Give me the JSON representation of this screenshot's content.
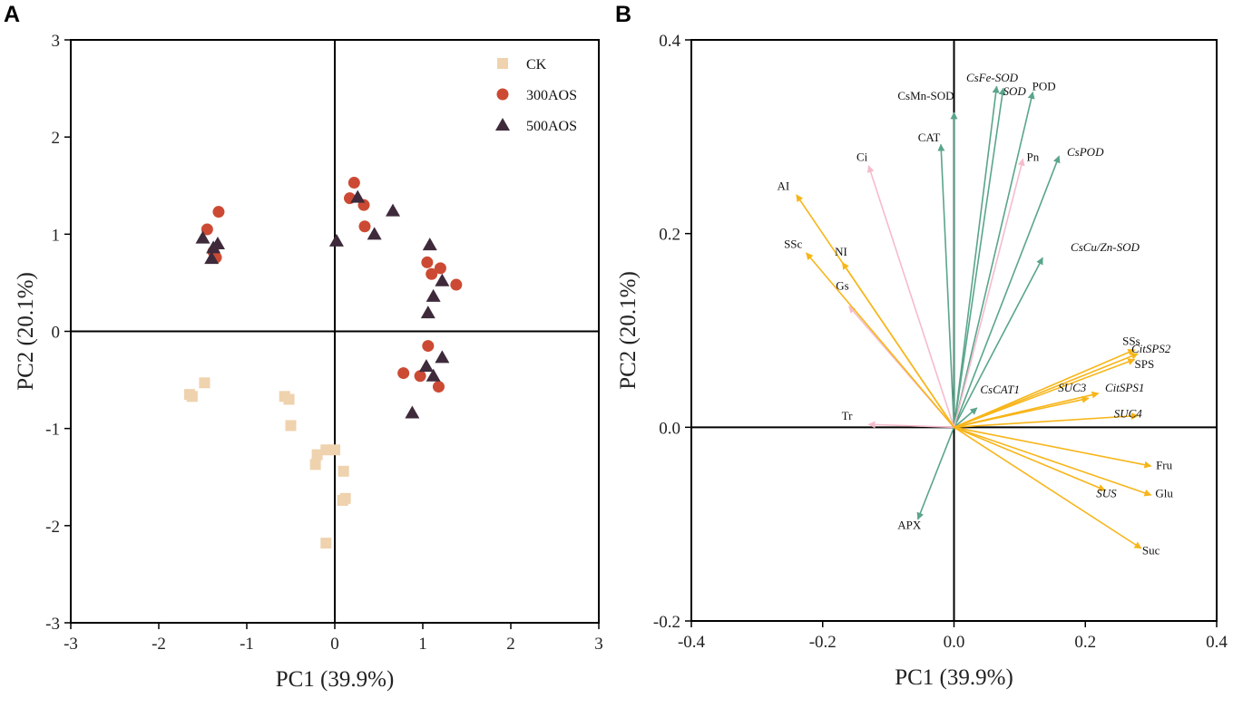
{
  "chart_data": [
    {
      "panel": "A",
      "type": "scatter",
      "xlabel": "PC1 (39.9%)",
      "ylabel": "PC2 (20.1%)",
      "xlim": [
        -3,
        3
      ],
      "ylim": [
        -3,
        3
      ],
      "xticks": [
        "-3",
        "-2",
        "-1",
        "0",
        "1",
        "2",
        "3"
      ],
      "yticks": [
        "-3",
        "-2",
        "-1",
        "0",
        "1",
        "2",
        "3"
      ],
      "legend_position": "top-right",
      "series": [
        {
          "name": "CK",
          "marker": "square",
          "color": "#efd2ae",
          "points": [
            [
              -1.65,
              -0.65
            ],
            [
              -1.62,
              -0.67
            ],
            [
              -1.48,
              -0.53
            ],
            [
              -0.57,
              -0.67
            ],
            [
              -0.52,
              -0.7
            ],
            [
              -0.5,
              -0.97
            ],
            [
              -0.2,
              -1.27
            ],
            [
              -0.22,
              -1.37
            ],
            [
              -0.1,
              -1.22
            ],
            [
              0.0,
              -1.22
            ],
            [
              0.1,
              -1.44
            ],
            [
              0.12,
              -1.72
            ],
            [
              0.09,
              -1.74
            ],
            [
              -0.1,
              -2.18
            ]
          ]
        },
        {
          "name": "300AOS",
          "marker": "circle",
          "color": "#cc4a33",
          "points": [
            [
              -1.32,
              1.23
            ],
            [
              -1.45,
              1.05
            ],
            [
              -1.38,
              0.82
            ],
            [
              -1.35,
              0.76
            ],
            [
              0.22,
              1.53
            ],
            [
              0.17,
              1.37
            ],
            [
              0.33,
              1.3
            ],
            [
              0.34,
              1.08
            ],
            [
              1.05,
              0.71
            ],
            [
              1.2,
              0.65
            ],
            [
              1.1,
              0.59
            ],
            [
              1.38,
              0.48
            ],
            [
              1.06,
              -0.15
            ],
            [
              0.78,
              -0.43
            ],
            [
              0.97,
              -0.46
            ],
            [
              1.18,
              -0.57
            ]
          ]
        },
        {
          "name": "500AOS",
          "marker": "triangle",
          "color": "#3e2a3a",
          "points": [
            [
              -1.5,
              0.96
            ],
            [
              -1.33,
              0.9
            ],
            [
              -1.38,
              0.86
            ],
            [
              -1.4,
              0.75
            ],
            [
              0.26,
              1.38
            ],
            [
              0.66,
              1.24
            ],
            [
              0.02,
              0.93
            ],
            [
              0.45,
              1.0
            ],
            [
              1.08,
              0.89
            ],
            [
              1.22,
              0.52
            ],
            [
              1.12,
              0.36
            ],
            [
              1.06,
              0.19
            ],
            [
              1.22,
              -0.27
            ],
            [
              1.04,
              -0.36
            ],
            [
              1.12,
              -0.46
            ],
            [
              0.88,
              -0.84
            ]
          ]
        }
      ]
    },
    {
      "panel": "B",
      "type": "vector",
      "xlabel": "PC1 (39.9%)",
      "ylabel": "PC2 (20.1%)",
      "xlim": [
        -0.4,
        0.4
      ],
      "ylim": [
        -0.2,
        0.4
      ],
      "xticks": [
        "-0.4",
        "-0.2",
        "0.0",
        "0.2",
        "0.4"
      ],
      "yticks": [
        "-0.2",
        "0.0",
        "0.2",
        "0.4"
      ],
      "groups": {
        "green": "#5aa58a",
        "pink": "#f5bccb",
        "orange": "#f7b519"
      },
      "vectors": [
        {
          "label": "CsMn-SOD",
          "x": 0.0,
          "y": 0.325,
          "group": "green",
          "italic": false,
          "lx": 0.0,
          "ly": 0.338,
          "anchor": "end"
        },
        {
          "label": "CsFe-SOD",
          "x": 0.065,
          "y": 0.352,
          "group": "green",
          "italic": true,
          "lx": 0.058,
          "ly": 0.357,
          "anchor": "middle"
        },
        {
          "label": "SOD",
          "x": 0.075,
          "y": 0.35,
          "group": "green",
          "italic": true,
          "lx": 0.092,
          "ly": 0.343,
          "anchor": "middle"
        },
        {
          "label": "POD",
          "x": 0.12,
          "y": 0.346,
          "group": "green",
          "italic": false,
          "lx": 0.137,
          "ly": 0.348,
          "anchor": "middle"
        },
        {
          "label": "CAT",
          "x": -0.02,
          "y": 0.292,
          "group": "green",
          "italic": false,
          "lx": -0.021,
          "ly": 0.295,
          "anchor": "end"
        },
        {
          "label": "CsPOD",
          "x": 0.16,
          "y": 0.28,
          "group": "green",
          "italic": true,
          "lx": 0.2,
          "ly": 0.28,
          "anchor": "middle"
        },
        {
          "label": "CsCu/Zn-SOD",
          "x": 0.135,
          "y": 0.175,
          "group": "green",
          "italic": true,
          "lx": 0.23,
          "ly": 0.182,
          "anchor": "middle"
        },
        {
          "label": "CsCAT1",
          "x": 0.035,
          "y": 0.02,
          "group": "green",
          "italic": true,
          "lx": 0.07,
          "ly": 0.035,
          "anchor": "middle"
        },
        {
          "label": "APX",
          "x": -0.055,
          "y": -0.095,
          "group": "green",
          "italic": false,
          "lx": -0.068,
          "ly": -0.105,
          "anchor": "middle"
        },
        {
          "label": "Ci",
          "x": -0.13,
          "y": 0.27,
          "group": "pink",
          "italic": false,
          "lx": -0.14,
          "ly": 0.275,
          "anchor": "middle"
        },
        {
          "label": "Pn",
          "x": 0.105,
          "y": 0.277,
          "group": "pink",
          "italic": false,
          "lx": 0.12,
          "ly": 0.275,
          "anchor": "middle"
        },
        {
          "label": "Gs",
          "x": -0.16,
          "y": 0.125,
          "group": "pink",
          "italic": false,
          "lx": -0.17,
          "ly": 0.142,
          "anchor": "middle"
        },
        {
          "label": "Tr",
          "x": -0.13,
          "y": 0.003,
          "group": "pink",
          "italic": false,
          "lx": -0.163,
          "ly": 0.008,
          "anchor": "middle"
        },
        {
          "label": "AI",
          "x": -0.24,
          "y": 0.24,
          "group": "orange",
          "italic": false,
          "lx": -0.26,
          "ly": 0.245,
          "anchor": "middle"
        },
        {
          "label": "SSc",
          "x": -0.225,
          "y": 0.18,
          "group": "orange",
          "italic": false,
          "lx": -0.245,
          "ly": 0.185,
          "anchor": "middle"
        },
        {
          "label": "NI",
          "x": -0.17,
          "y": 0.17,
          "group": "orange",
          "italic": false,
          "lx": -0.172,
          "ly": 0.177,
          "anchor": "middle"
        },
        {
          "label": "SSs",
          "x": 0.275,
          "y": 0.08,
          "group": "orange",
          "italic": false,
          "lx": 0.27,
          "ly": 0.085,
          "anchor": "middle"
        },
        {
          "label": "CitSPS2",
          "x": 0.28,
          "y": 0.076,
          "group": "orange",
          "italic": true,
          "lx": 0.3,
          "ly": 0.077,
          "anchor": "middle"
        },
        {
          "label": "SPS",
          "x": 0.275,
          "y": 0.07,
          "group": "orange",
          "italic": false,
          "lx": 0.29,
          "ly": 0.061,
          "anchor": "middle"
        },
        {
          "label": "SUC3",
          "x": 0.205,
          "y": 0.03,
          "group": "orange",
          "italic": true,
          "lx": 0.18,
          "ly": 0.037,
          "anchor": "middle"
        },
        {
          "label": "CitSPS1",
          "x": 0.22,
          "y": 0.035,
          "group": "orange",
          "italic": true,
          "lx": 0.26,
          "ly": 0.037,
          "anchor": "middle"
        },
        {
          "label": "SUC4",
          "x": 0.28,
          "y": 0.012,
          "group": "orange",
          "italic": true,
          "lx": 0.265,
          "ly": 0.01,
          "anchor": "middle"
        },
        {
          "label": "Fru",
          "x": 0.3,
          "y": -0.04,
          "group": "orange",
          "italic": false,
          "lx": 0.32,
          "ly": -0.043,
          "anchor": "middle"
        },
        {
          "label": "SUS",
          "x": 0.23,
          "y": -0.065,
          "group": "orange",
          "italic": true,
          "lx": 0.232,
          "ly": -0.072,
          "anchor": "middle"
        },
        {
          "label": "Glu",
          "x": 0.3,
          "y": -0.07,
          "group": "orange",
          "italic": false,
          "lx": 0.32,
          "ly": -0.072,
          "anchor": "middle"
        },
        {
          "label": "Suc",
          "x": 0.285,
          "y": -0.125,
          "group": "orange",
          "italic": false,
          "lx": 0.3,
          "ly": -0.131,
          "anchor": "middle"
        }
      ]
    }
  ]
}
